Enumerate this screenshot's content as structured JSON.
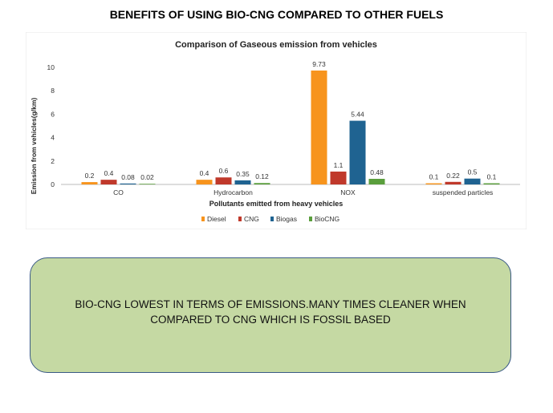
{
  "slide": {
    "title": "BENEFITS OF USING BIO-CNG COMPARED TO OTHER  FUELS",
    "callout_text": "BIO-CNG LOWEST IN TERMS OF EMISSIONS.MANY TIMES CLEANER WHEN COMPARED TO CNG WHICH IS FOSSIL BASED"
  },
  "chart_data": {
    "type": "bar",
    "title": "Comparison of Gaseous emission from vehicles",
    "xlabel": "Pollutants emitted from heavy vehicles",
    "ylabel": "Emission from vehicles(g/km)",
    "categories": [
      "CO",
      "Hydrocarbon",
      "NOX",
      "suspended particles"
    ],
    "series": [
      {
        "name": "Diesel",
        "color": "#f7941d",
        "values": [
          0.2,
          0.4,
          9.73,
          0.1
        ],
        "labels": [
          "0.2",
          "0.4",
          "9.73",
          "0.1"
        ]
      },
      {
        "name": "CNG",
        "color": "#c0392b",
        "values": [
          0.4,
          0.6,
          1.1,
          0.22
        ],
        "labels": [
          "0.4",
          "0.6",
          "1.1",
          "0.22"
        ]
      },
      {
        "name": "Biogas",
        "color": "#1f6391",
        "values": [
          0.08,
          0.35,
          5.44,
          0.5
        ],
        "labels": [
          "0.08",
          "0.35",
          "5.44",
          "0.5"
        ]
      },
      {
        "name": "BioCNG",
        "color": "#5a9e3c",
        "values": [
          0.02,
          0.12,
          0.48,
          0.1
        ],
        "labels": [
          "0.02",
          "0.12",
          "0.48",
          "0.1"
        ]
      }
    ],
    "ylim": [
      0,
      10
    ],
    "yticks": [
      "0",
      "2",
      "4",
      "6",
      "8",
      "10"
    ],
    "grid": false,
    "legend_position": "bottom"
  }
}
